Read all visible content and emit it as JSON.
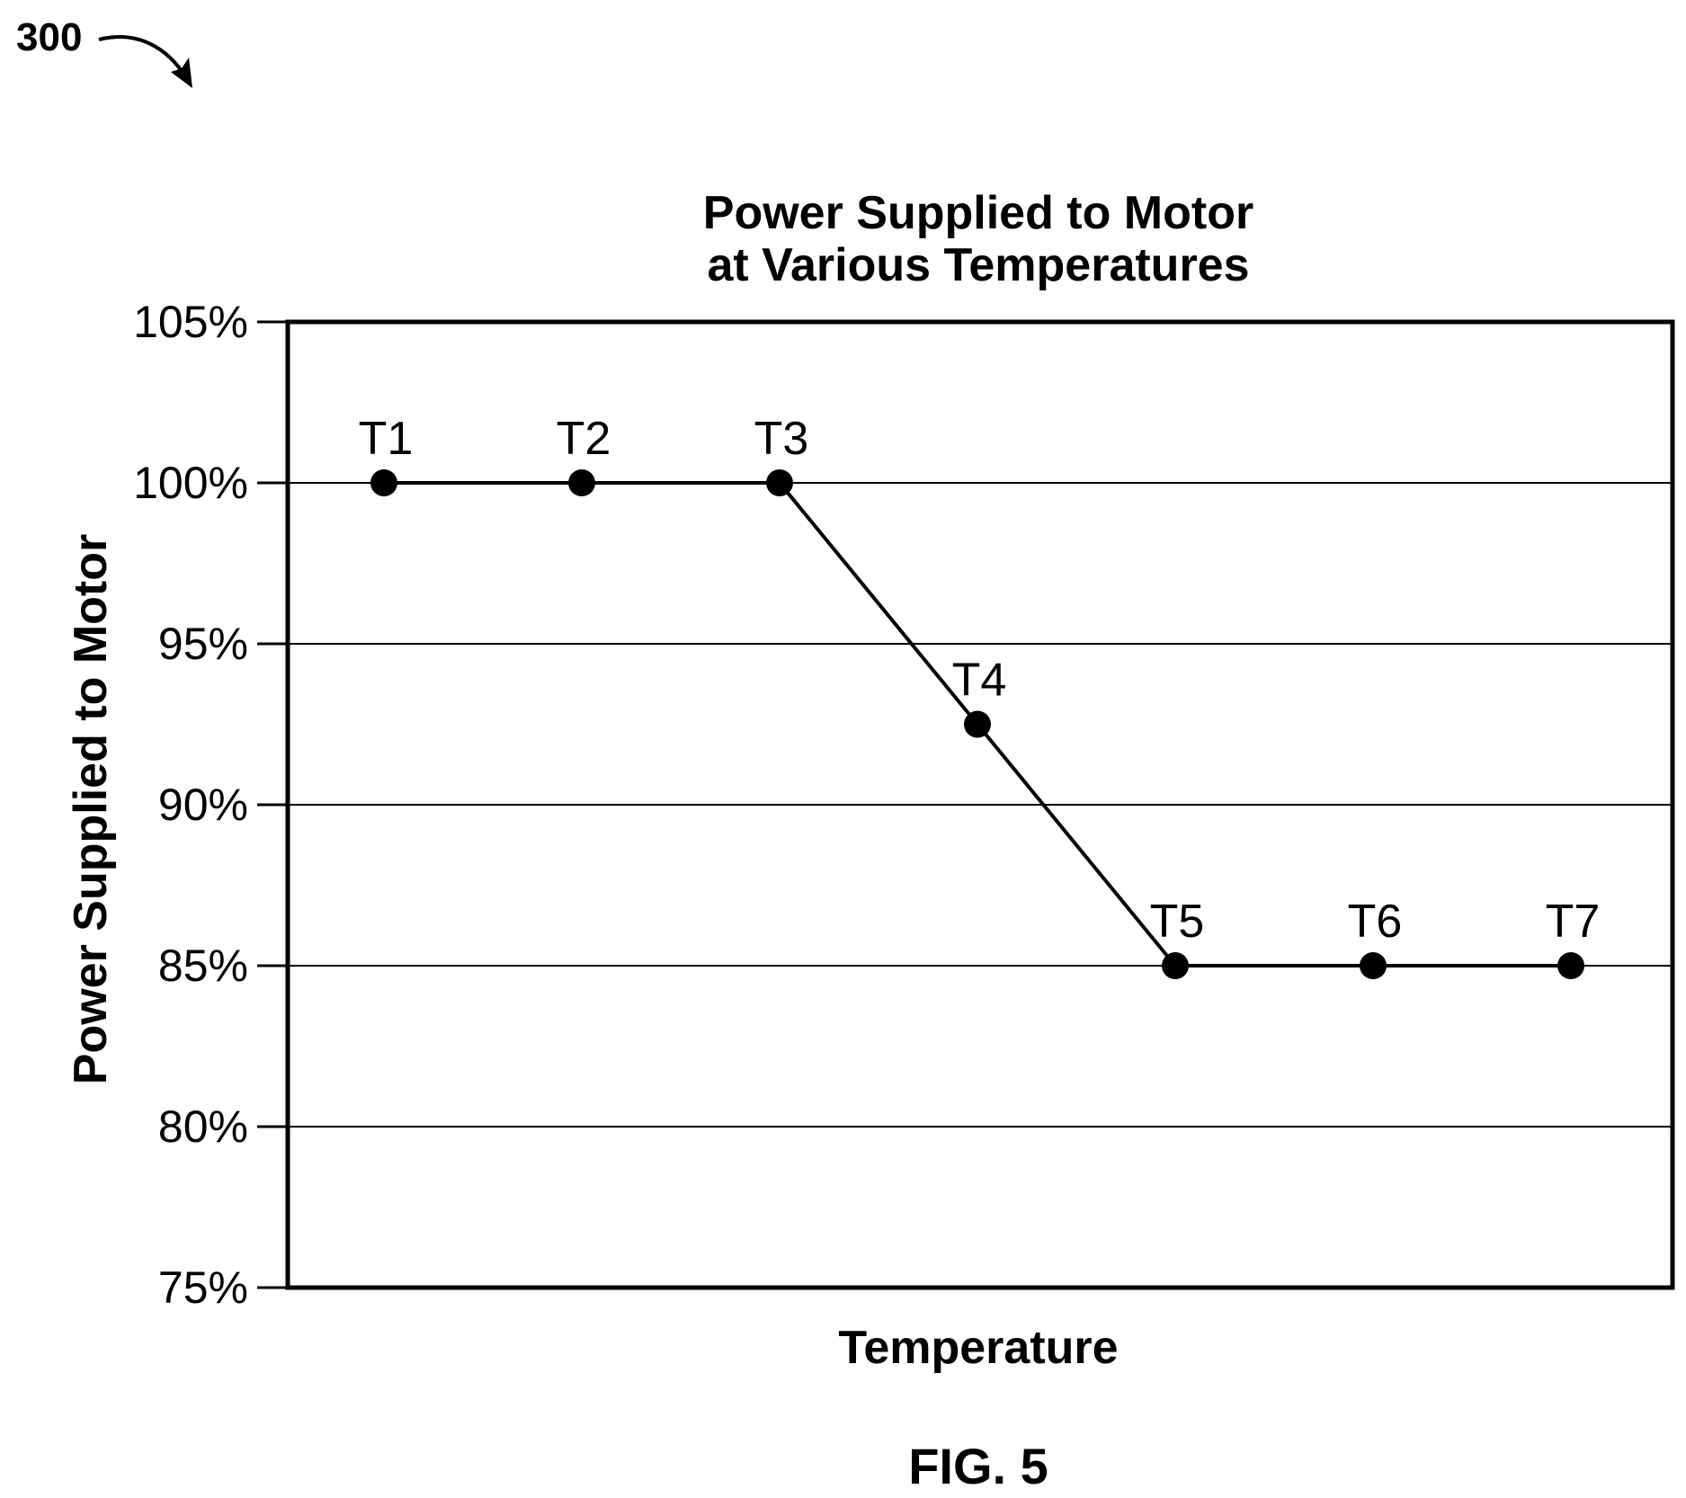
{
  "figure": {
    "ref_number": "300",
    "caption": "FIG. 5"
  },
  "chart_data": {
    "type": "line",
    "title": "Power Supplied to Motor at Various Temperatures",
    "title_lines": [
      "Power Supplied to Motor",
      "at Various Temperatures"
    ],
    "xlabel": "Temperature",
    "ylabel": "Power Supplied to Motor",
    "ylim": [
      75,
      105
    ],
    "yticks": [
      {
        "value": 105,
        "label": "105%"
      },
      {
        "value": 100,
        "label": "100%"
      },
      {
        "value": 95,
        "label": "95%"
      },
      {
        "value": 90,
        "label": "90%"
      },
      {
        "value": 85,
        "label": "85%"
      },
      {
        "value": 80,
        "label": "80%"
      },
      {
        "value": 75,
        "label": "75%"
      }
    ],
    "grid": true,
    "legend": "none",
    "series": [
      {
        "points": [
          {
            "label": "T1",
            "y": 100
          },
          {
            "label": "T2",
            "y": 100
          },
          {
            "label": "T3",
            "y": 100
          },
          {
            "label": "T4",
            "y": 92.5
          },
          {
            "label": "T5",
            "y": 85
          },
          {
            "label": "T6",
            "y": 85
          },
          {
            "label": "T7",
            "y": 85
          }
        ]
      }
    ],
    "colors": {
      "line": "#000000",
      "grid": "#000000",
      "background": "#ffffff"
    }
  }
}
